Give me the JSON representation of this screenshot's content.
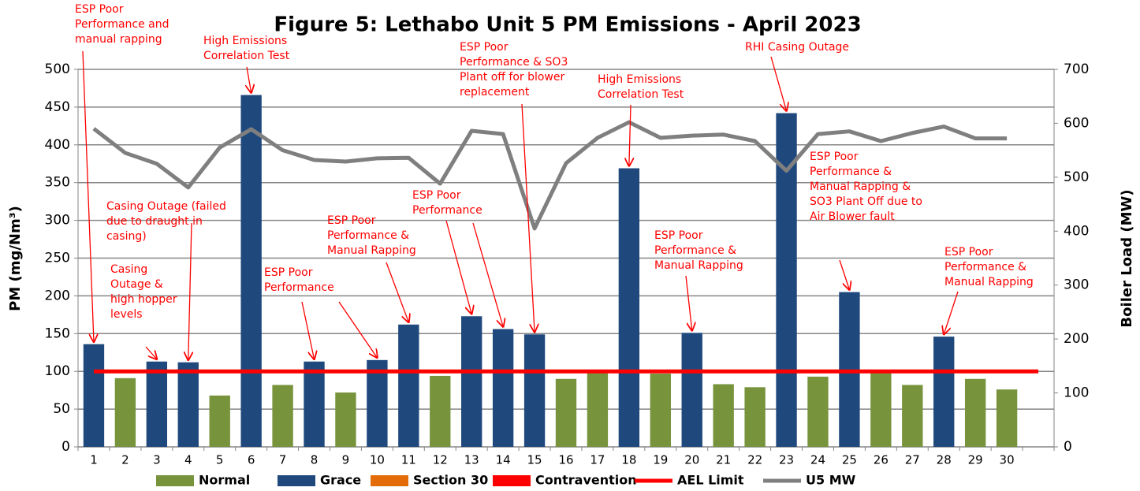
{
  "chart_data": {
    "type": "bar",
    "title": "Figure 5: Lethabo Unit 5 PM Emissions -  April 2023",
    "y_label": "PM (mg/Nm³)",
    "y2_label": "Boiler Load (MW)",
    "categories": [
      "1",
      "2",
      "3",
      "4",
      "5",
      "6",
      "7",
      "8",
      "9",
      "10",
      "11",
      "12",
      "13",
      "14",
      "15",
      "16",
      "17",
      "18",
      "19",
      "20",
      "21",
      "22",
      "23",
      "24",
      "25",
      "26",
      "27",
      "28",
      "29",
      "30",
      null
    ],
    "series": [
      {
        "name": "Normal",
        "type": "bar",
        "color": "#77933c",
        "values": [
          null,
          91,
          null,
          null,
          68,
          null,
          82,
          null,
          72,
          null,
          null,
          94,
          null,
          null,
          null,
          90,
          100,
          null,
          97,
          null,
          83,
          79,
          null,
          93,
          null,
          100,
          82,
          null,
          90,
          76,
          null
        ]
      },
      {
        "name": "Grace",
        "type": "bar",
        "color": "#1f497d",
        "values": [
          136,
          null,
          113,
          112,
          null,
          466,
          null,
          113,
          null,
          115,
          162,
          null,
          173,
          156,
          149,
          null,
          null,
          369,
          null,
          151,
          null,
          null,
          442,
          null,
          205,
          null,
          null,
          146,
          null,
          null,
          null
        ]
      },
      {
        "name": "Section 30",
        "type": "bar",
        "color": "#e36c09",
        "values": [
          null,
          null,
          null,
          null,
          null,
          null,
          null,
          null,
          null,
          null,
          null,
          null,
          null,
          null,
          null,
          null,
          null,
          null,
          null,
          null,
          null,
          null,
          null,
          null,
          null,
          null,
          null,
          null,
          null,
          null,
          null
        ]
      },
      {
        "name": "Contravention",
        "type": "bar",
        "color": "#ff0000",
        "values": [
          null,
          null,
          null,
          null,
          null,
          null,
          null,
          null,
          null,
          null,
          null,
          null,
          null,
          null,
          null,
          null,
          null,
          null,
          null,
          null,
          null,
          null,
          null,
          null,
          null,
          null,
          null,
          null,
          null,
          null,
          null
        ]
      },
      {
        "name": "AEL Limit",
        "type": "line",
        "color": "#ff0000",
        "values": [
          100,
          100,
          100,
          100,
          100,
          100,
          100,
          100,
          100,
          100,
          100,
          100,
          100,
          100,
          100,
          100,
          100,
          100,
          100,
          100,
          100,
          100,
          100,
          100,
          100,
          100,
          100,
          100,
          100,
          100,
          100
        ]
      },
      {
        "name": "U5 MW",
        "type": "line",
        "color": "#7f7f7f",
        "axis": "y2",
        "values": [
          590,
          545,
          525,
          481,
          555,
          589,
          550,
          532,
          529,
          535,
          536,
          488,
          586,
          580,
          405,
          526,
          573,
          602,
          573,
          577,
          579,
          567,
          512,
          580,
          585,
          567,
          582,
          594,
          572,
          572,
          null
        ]
      }
    ],
    "ylim": [
      0,
      500
    ],
    "yticks": [
      0,
      50,
      100,
      150,
      200,
      250,
      300,
      350,
      400,
      450,
      500
    ],
    "y2lim": [
      0,
      700
    ],
    "y2ticks": [
      0,
      100,
      200,
      300,
      400,
      500,
      600,
      700
    ],
    "grid": true,
    "legend": "bottom",
    "annotations": [
      {
        "lines": [
          "ESP Poor",
          "Performance and",
          "manual rapping"
        ]
      },
      {
        "lines": [
          "High Emissions",
          "Correlation Test"
        ]
      },
      {
        "lines": [
          "Casing Outage (failed",
          "due to draught in",
          "casing)"
        ]
      },
      {
        "lines": [
          "Casing",
          "Outage &",
          "high hopper",
          "levels"
        ]
      },
      {
        "lines": [
          "ESP Poor",
          "Performance"
        ]
      },
      {
        "lines": [
          "ESP Poor",
          "Performance &",
          "Manual Rapping"
        ]
      },
      {
        "lines": [
          "ESP Poor",
          "Performance"
        ]
      },
      {
        "lines": [
          "ESP Poor",
          "Performance & SO3",
          "Plant off for blower",
          "replacement"
        ]
      },
      {
        "lines": [
          "High Emissions",
          "Correlation Test"
        ]
      },
      {
        "lines": [
          "RHI Casing Outage"
        ]
      },
      {
        "lines": [
          "ESP Poor",
          "Performance &",
          "Manual Rapping"
        ]
      },
      {
        "lines": [
          "ESP Poor",
          "Performance &",
          "Manual Rapping &",
          "SO3 Plant Off due to",
          "Air Blower fault"
        ]
      },
      {
        "lines": [
          "ESP Poor",
          "Performance &",
          "Manual Rapping"
        ]
      }
    ]
  }
}
